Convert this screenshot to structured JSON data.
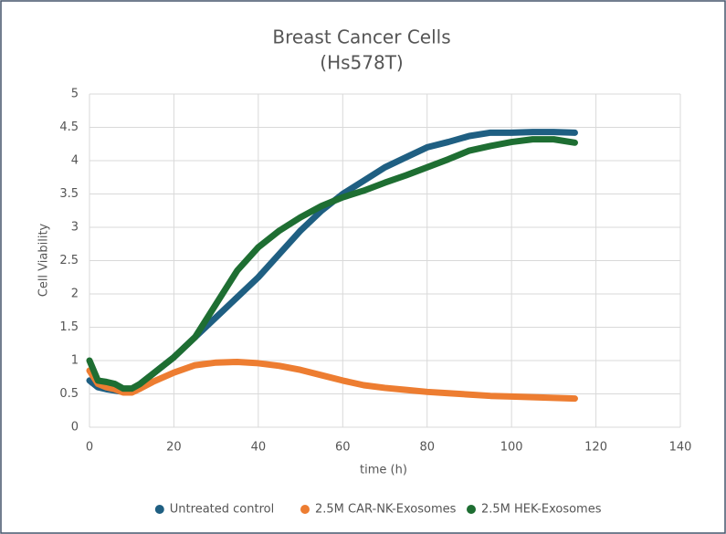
{
  "chart_data": {
    "type": "line",
    "title": "Breast Cancer Cells",
    "subtitle": "(Hs578T)",
    "x_label": "time (h)",
    "y_label": "Cell Viability",
    "x": [
      0,
      2,
      4,
      6,
      8,
      10,
      12,
      15,
      20,
      25,
      30,
      35,
      40,
      45,
      50,
      55,
      60,
      65,
      70,
      75,
      80,
      85,
      90,
      95,
      100,
      105,
      110,
      115
    ],
    "series": [
      {
        "name": "Untreated control",
        "color": "#1f5f82",
        "values": [
          0.7,
          0.6,
          0.57,
          0.55,
          0.53,
          0.57,
          0.65,
          0.8,
          1.05,
          1.35,
          1.65,
          1.95,
          2.25,
          2.6,
          2.95,
          3.25,
          3.5,
          3.7,
          3.9,
          4.05,
          4.2,
          4.28,
          4.37,
          4.42,
          4.42,
          4.43,
          4.43,
          4.42
        ]
      },
      {
        "name": "2.5M CAR-NK-Exosomes",
        "color": "#ed7d31",
        "values": [
          0.85,
          0.65,
          0.6,
          0.57,
          0.52,
          0.52,
          0.58,
          0.68,
          0.82,
          0.93,
          0.97,
          0.98,
          0.96,
          0.92,
          0.86,
          0.78,
          0.7,
          0.63,
          0.59,
          0.56,
          0.53,
          0.51,
          0.49,
          0.47,
          0.46,
          0.45,
          0.44,
          0.43
        ]
      },
      {
        "name": "2.5M HEK-Exosomes",
        "color": "#1e6e32",
        "values": [
          1.0,
          0.7,
          0.68,
          0.65,
          0.58,
          0.58,
          0.65,
          0.8,
          1.05,
          1.35,
          1.85,
          2.35,
          2.7,
          2.95,
          3.15,
          3.32,
          3.45,
          3.55,
          3.67,
          3.78,
          3.9,
          4.02,
          4.15,
          4.22,
          4.28,
          4.32,
          4.32,
          4.27
        ]
      }
    ],
    "xlim": [
      0,
      140
    ],
    "xticks": [
      0,
      20,
      40,
      60,
      80,
      100,
      120,
      140
    ],
    "ylim": [
      0,
      5
    ],
    "yticks": [
      0,
      0.5,
      1,
      1.5,
      2,
      2.5,
      3,
      3.5,
      4,
      4.5,
      5
    ],
    "grid": true,
    "legend": "bottom"
  }
}
